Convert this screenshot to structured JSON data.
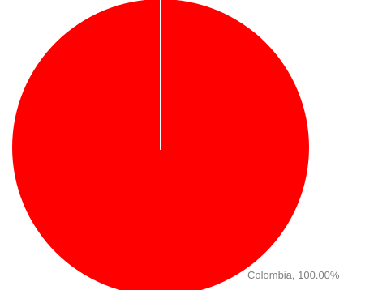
{
  "chart_data": {
    "type": "pie",
    "slices": [
      {
        "label": "Colombia",
        "value": 100.0,
        "percent_label": "100.00%",
        "color": "#ff0000"
      }
    ],
    "data_labels": [
      "Colombia, 100.00%"
    ],
    "title": "",
    "legend": "none",
    "slice_border_color": "#ffffff",
    "start_angle": "12 o'clock"
  }
}
